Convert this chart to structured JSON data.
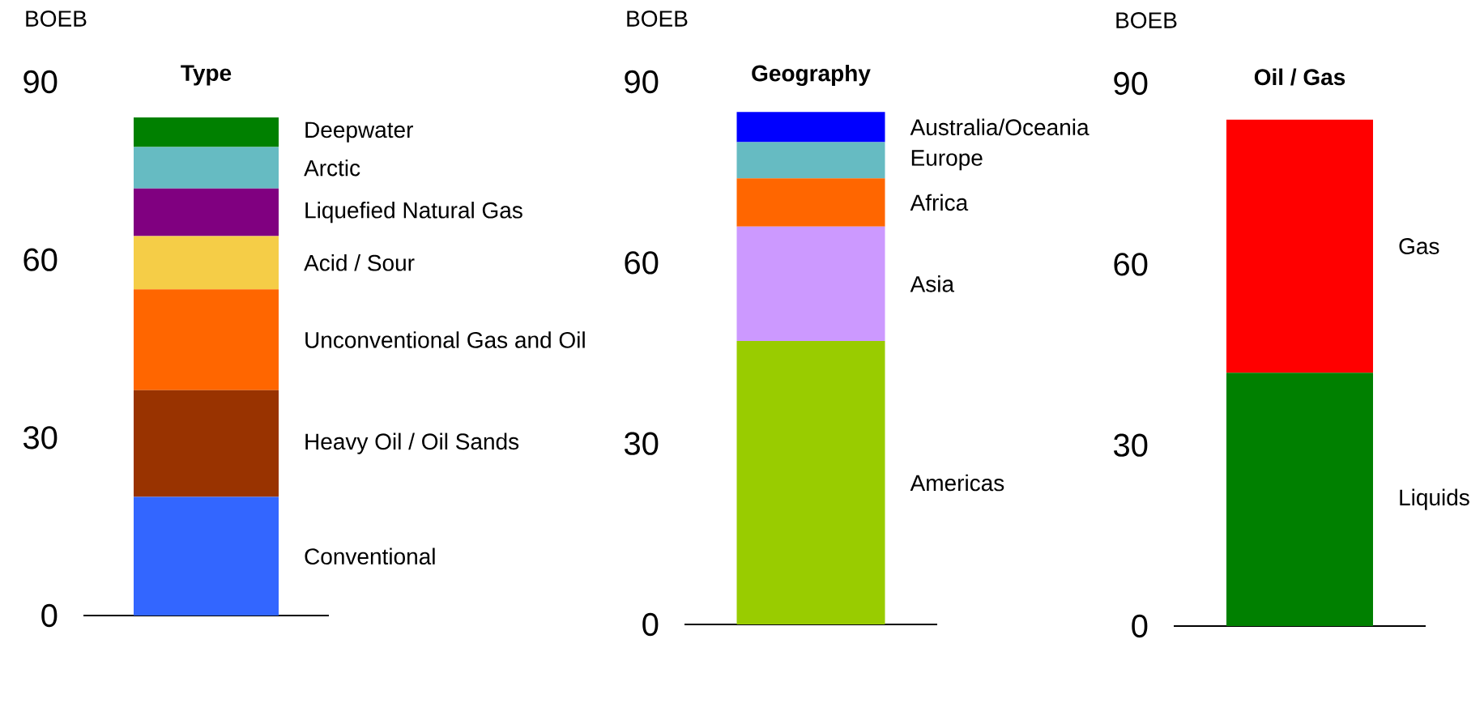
{
  "chart_data": [
    {
      "type": "bar",
      "stacked": true,
      "title": "Type",
      "ylabel": "BOEB",
      "categories": [
        null
      ],
      "ylim": [
        0,
        90
      ],
      "yticks": [
        0,
        30,
        60,
        90
      ],
      "series": [
        {
          "name": "Conventional",
          "color": "#3366ff",
          "values": [
            20
          ]
        },
        {
          "name": "Heavy Oil / Oil Sands",
          "color": "#993300",
          "values": [
            18
          ]
        },
        {
          "name": "Unconventional Gas and Oil",
          "color": "#ff6600",
          "values": [
            17
          ]
        },
        {
          "name": "Acid / Sour",
          "color": "#f5cd47",
          "values": [
            9
          ]
        },
        {
          "name": "Liquefied Natural Gas",
          "color": "#800080",
          "values": [
            8
          ]
        },
        {
          "name": "Arctic",
          "color": "#66bbc2",
          "values": [
            7
          ]
        },
        {
          "name": "Deepwater",
          "color": "#008000",
          "values": [
            5
          ]
        }
      ]
    },
    {
      "type": "bar",
      "stacked": true,
      "title": "Geography",
      "ylabel": "BOEB",
      "categories": [
        null
      ],
      "ylim": [
        0,
        90
      ],
      "yticks": [
        0,
        30,
        60,
        90
      ],
      "series": [
        {
          "name": "Americas",
          "color": "#99cc00",
          "values": [
            47
          ]
        },
        {
          "name": "Asia",
          "color": "#cc99ff",
          "values": [
            19
          ]
        },
        {
          "name": "Africa",
          "color": "#ff6600",
          "values": [
            8
          ]
        },
        {
          "name": "Europe",
          "color": "#66bbc2",
          "values": [
            6
          ]
        },
        {
          "name": "Australia/Oceania",
          "color": "#0000ff",
          "values": [
            5
          ]
        }
      ]
    },
    {
      "type": "bar",
      "stacked": true,
      "title": "Oil / Gas",
      "ylabel": "BOEB",
      "categories": [
        null
      ],
      "ylim": [
        0,
        90
      ],
      "yticks": [
        0,
        30,
        60,
        90
      ],
      "series": [
        {
          "name": "Liquids",
          "color": "#008000",
          "values": [
            42
          ]
        },
        {
          "name": "Gas",
          "color": "#ff0000",
          "values": [
            42
          ]
        }
      ]
    }
  ]
}
